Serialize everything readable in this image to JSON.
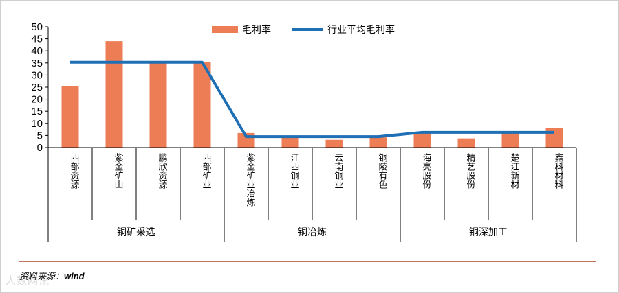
{
  "chart_data": {
    "type": "bar",
    "categories": [
      "西部资源",
      "紫金矿山",
      "鹏欣资源",
      "西部矿业",
      "紫金矿业冶炼",
      "江西铜业",
      "云南铜业",
      "铜陵有色",
      "海亮股份",
      "精艺股份",
      "楚江新材",
      "鑫科材料"
    ],
    "groups": [
      {
        "label": "铜矿采选",
        "count": 4
      },
      {
        "label": "铜冶炼",
        "count": 4
      },
      {
        "label": "铜深加工",
        "count": 4
      }
    ],
    "series": [
      {
        "name": "毛利率",
        "type": "bar",
        "values": [
          25.5,
          44,
          35.5,
          35.5,
          6,
          4,
          3.2,
          4.2,
          6,
          3.8,
          6.5,
          8
        ],
        "color": "#ED7D54"
      },
      {
        "name": "行业平均毛利率",
        "type": "line",
        "values": [
          35.3,
          35.3,
          35.3,
          35.3,
          4.5,
          4.5,
          4.5,
          4.5,
          6.3,
          6.3,
          6.3,
          6.3
        ],
        "color": "#1F6FB5"
      }
    ],
    "yticks": [
      0,
      5,
      10,
      15,
      20,
      25,
      30,
      35,
      40,
      45,
      50
    ],
    "ylim": [
      0,
      50
    ],
    "legend_position": "top",
    "grid": false
  },
  "source": {
    "label": "资料来源：",
    "value": "wind"
  },
  "watermark": "人数网讯"
}
